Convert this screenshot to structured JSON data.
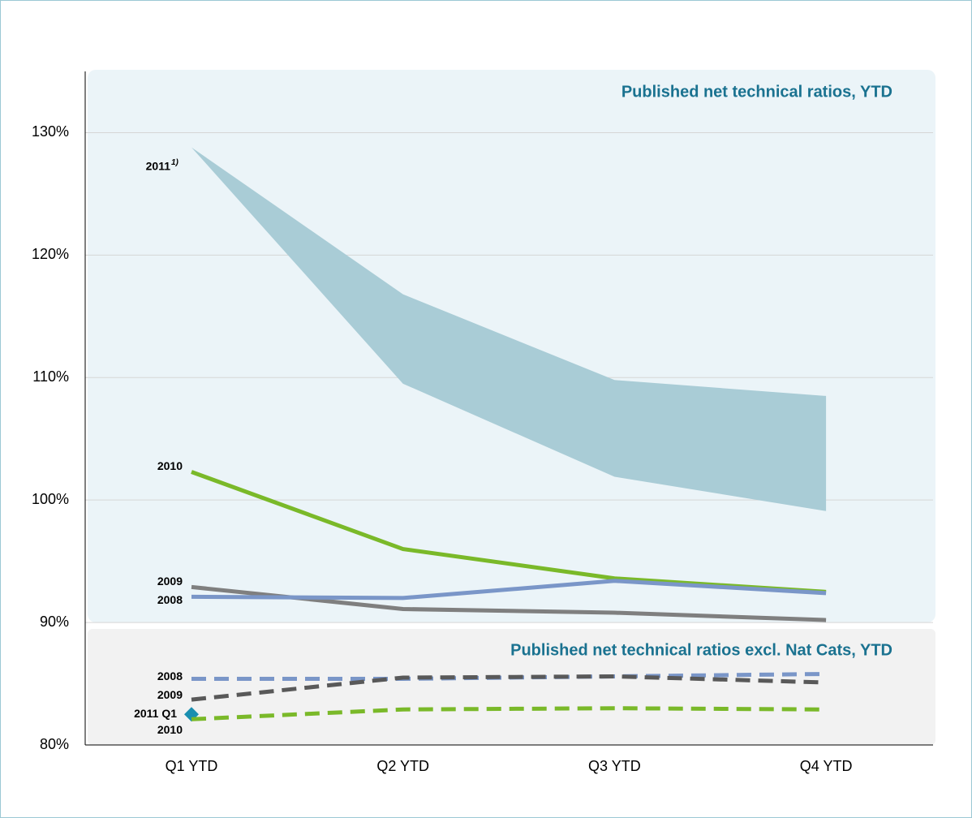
{
  "chart_data": {
    "type": "line",
    "panel_titles": [
      "Published  net technical ratios, YTD",
      "Published net technical ratios excl. Nat Cats, YTD"
    ],
    "categories": [
      "Q1 YTD",
      "Q2 YTD",
      "Q3 YTD",
      "Q4 YTD"
    ],
    "ylim": [
      80,
      135
    ],
    "yticks": [
      {
        "value": 80,
        "label": "80%"
      },
      {
        "value": 90,
        "label": "90%"
      },
      {
        "value": 100,
        "label": "100%"
      },
      {
        "value": 110,
        "label": "110%"
      },
      {
        "value": 120,
        "label": "120%"
      },
      {
        "value": 130,
        "label": "130%"
      }
    ],
    "grid": true,
    "series": [
      {
        "name": "2011",
        "footnote_mark": "1)",
        "kind": "band",
        "color": "#a9ccd6",
        "values": [
          128.8,
          116.8,
          109.8,
          108.5
        ],
        "lower": [
          128.8,
          109.5,
          101.9,
          99.1
        ]
      },
      {
        "name": "2010",
        "kind": "solid",
        "color": "#7ab929",
        "values": [
          102.3,
          96.0,
          93.6,
          92.5
        ]
      },
      {
        "name": "2009",
        "kind": "solid",
        "color": "#7f7f7f",
        "values": [
          92.9,
          91.1,
          90.8,
          90.2
        ]
      },
      {
        "name": "2008",
        "kind": "solid",
        "color": "#7a96c8",
        "values": [
          92.1,
          92.0,
          93.4,
          92.4
        ]
      },
      {
        "name": "2008",
        "kind": "dashed",
        "color": "#7a96c8",
        "values": [
          85.4,
          85.4,
          85.6,
          85.8
        ]
      },
      {
        "name": "2009",
        "kind": "dashed",
        "color": "#595959",
        "values": [
          83.7,
          85.5,
          85.6,
          85.1
        ]
      },
      {
        "name": "2011 Q1",
        "kind": "diamond",
        "color": "#1a8fb0",
        "values": [
          82.5,
          null,
          null,
          null
        ]
      },
      {
        "name": "2010",
        "kind": "dashed",
        "color": "#7ab929",
        "values": [
          82.1,
          82.9,
          83.0,
          82.9
        ]
      }
    ]
  }
}
